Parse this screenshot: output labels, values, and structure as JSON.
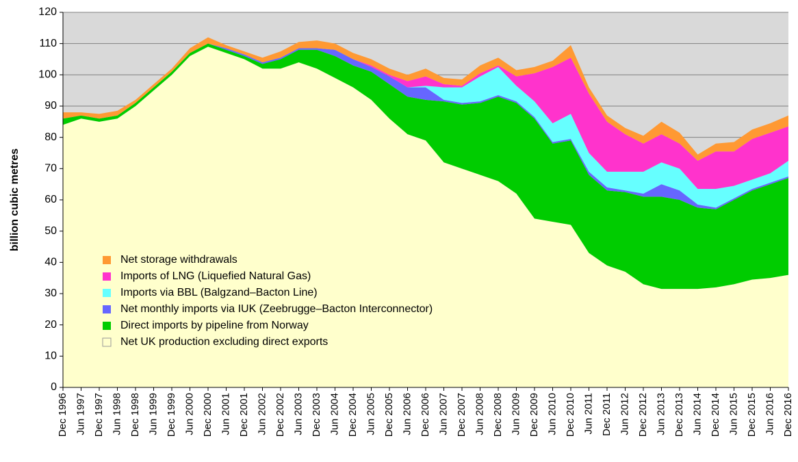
{
  "chart_data": {
    "type": "stacked_area",
    "y_label": "billion cubic metres",
    "categories": [
      "Dec 1996",
      "Jun 1997",
      "Dec 1997",
      "Jun 1998",
      "Dec 1998",
      "Jun 1999",
      "Dec 1999",
      "Jun 2000",
      "Dec 2000",
      "Jun 2001",
      "Dec 2001",
      "Jun 2002",
      "Dec 2002",
      "Jun 2003",
      "Dec 2003",
      "Jun 2004",
      "Dec 2004",
      "Jun 2005",
      "Dec 2005",
      "Jun 2006",
      "Dec 2006",
      "Jun 2007",
      "Dec 2007",
      "Jun 2008",
      "Dec 2008",
      "Jun 2009",
      "Dec 2009",
      "Jun 2010",
      "Dec 2010",
      "Jun 2011",
      "Dec 2011",
      "Jun 2012",
      "Dec 2012",
      "Jun 2013",
      "Dec 2013",
      "Jun 2014",
      "Dec 2014",
      "Jun 2015",
      "Dec 2015",
      "Jun 2016",
      "Dec 2016"
    ],
    "series": [
      {
        "name": "Net UK production excluding direct exports",
        "color": "#ffffcc",
        "values": [
          84,
          86,
          85,
          86,
          90,
          95,
          100,
          106,
          109,
          107,
          105,
          102,
          102,
          104,
          102,
          99,
          96,
          92,
          86,
          81,
          79,
          72,
          70,
          68,
          66,
          62,
          54,
          53,
          52,
          43,
          39,
          37,
          33,
          31.5,
          31.5,
          31.5,
          32,
          33,
          34.5,
          35,
          36
        ]
      },
      {
        "name": "Direct imports by pipeline from Norway",
        "color": "#00cc00",
        "values": [
          2,
          1,
          1,
          1,
          1,
          1,
          1,
          1,
          1,
          1,
          1,
          1.5,
          3,
          4,
          6,
          7,
          7,
          9,
          11,
          12,
          13,
          19.5,
          20.5,
          23,
          27,
          29,
          32,
          25,
          27,
          25,
          24,
          25.5,
          28,
          29.5,
          28.5,
          26,
          25,
          27,
          28.5,
          30,
          31
        ]
      },
      {
        "name": "Net monthly imports via IUK (Zeebrugge–Bacton Interconnector)",
        "color": "#6666ff",
        "values": [
          0,
          0,
          0,
          0,
          0,
          0,
          0,
          0,
          0,
          0.5,
          0.5,
          0.5,
          0.5,
          0.5,
          0.5,
          2,
          2,
          1.5,
          2.5,
          3,
          4,
          0.5,
          0.5,
          0.5,
          0.5,
          0.5,
          0.5,
          0.5,
          0.5,
          1,
          1,
          0.5,
          1,
          4,
          3,
          1,
          0.5,
          0.5,
          0.5,
          0.5,
          0.5
        ]
      },
      {
        "name": "Imports via BBL (Balgzand–Bacton Line)",
        "color": "#66ffff",
        "values": [
          0,
          0,
          0,
          0,
          0,
          0,
          0,
          0,
          0,
          0,
          0,
          0,
          0,
          0,
          0,
          0,
          0,
          0,
          0,
          0,
          0.5,
          4,
          5,
          8,
          9,
          5,
          5,
          6,
          8,
          6,
          5,
          6,
          7,
          7,
          7,
          5,
          6,
          4,
          3,
          3,
          5
        ]
      },
      {
        "name": "Imports of LNG (Liquefied Natural Gas)",
        "color": "#ff33cc",
        "values": [
          0,
          0,
          0,
          0,
          0,
          0,
          0,
          0,
          0,
          0,
          0,
          0,
          0,
          0,
          0,
          0,
          0,
          0.5,
          0.5,
          2,
          3,
          1,
          0.5,
          1,
          0.5,
          3,
          9,
          18,
          18,
          19,
          16,
          12,
          9,
          9,
          8,
          9,
          12,
          11,
          13,
          13,
          11
        ]
      },
      {
        "name": "Net storage withdrawals",
        "color": "#ff9933",
        "values": [
          2,
          1,
          1.5,
          1.5,
          1,
          1,
          1,
          1.5,
          2,
          1,
          1,
          1.5,
          2,
          2,
          2.5,
          2,
          2,
          2,
          2,
          2,
          2.5,
          2,
          2,
          2.5,
          2.5,
          2,
          2,
          2,
          4,
          2,
          2,
          2,
          2.5,
          4,
          3.5,
          2,
          2.5,
          3,
          3,
          3,
          3.5
        ]
      }
    ],
    "ylim": [
      0,
      120
    ],
    "yticks": [
      0,
      10,
      20,
      30,
      40,
      50,
      60,
      70,
      80,
      90,
      100,
      110,
      120
    ],
    "grid": true,
    "legend": "lower left",
    "plot_background": "#d9d9d9"
  }
}
